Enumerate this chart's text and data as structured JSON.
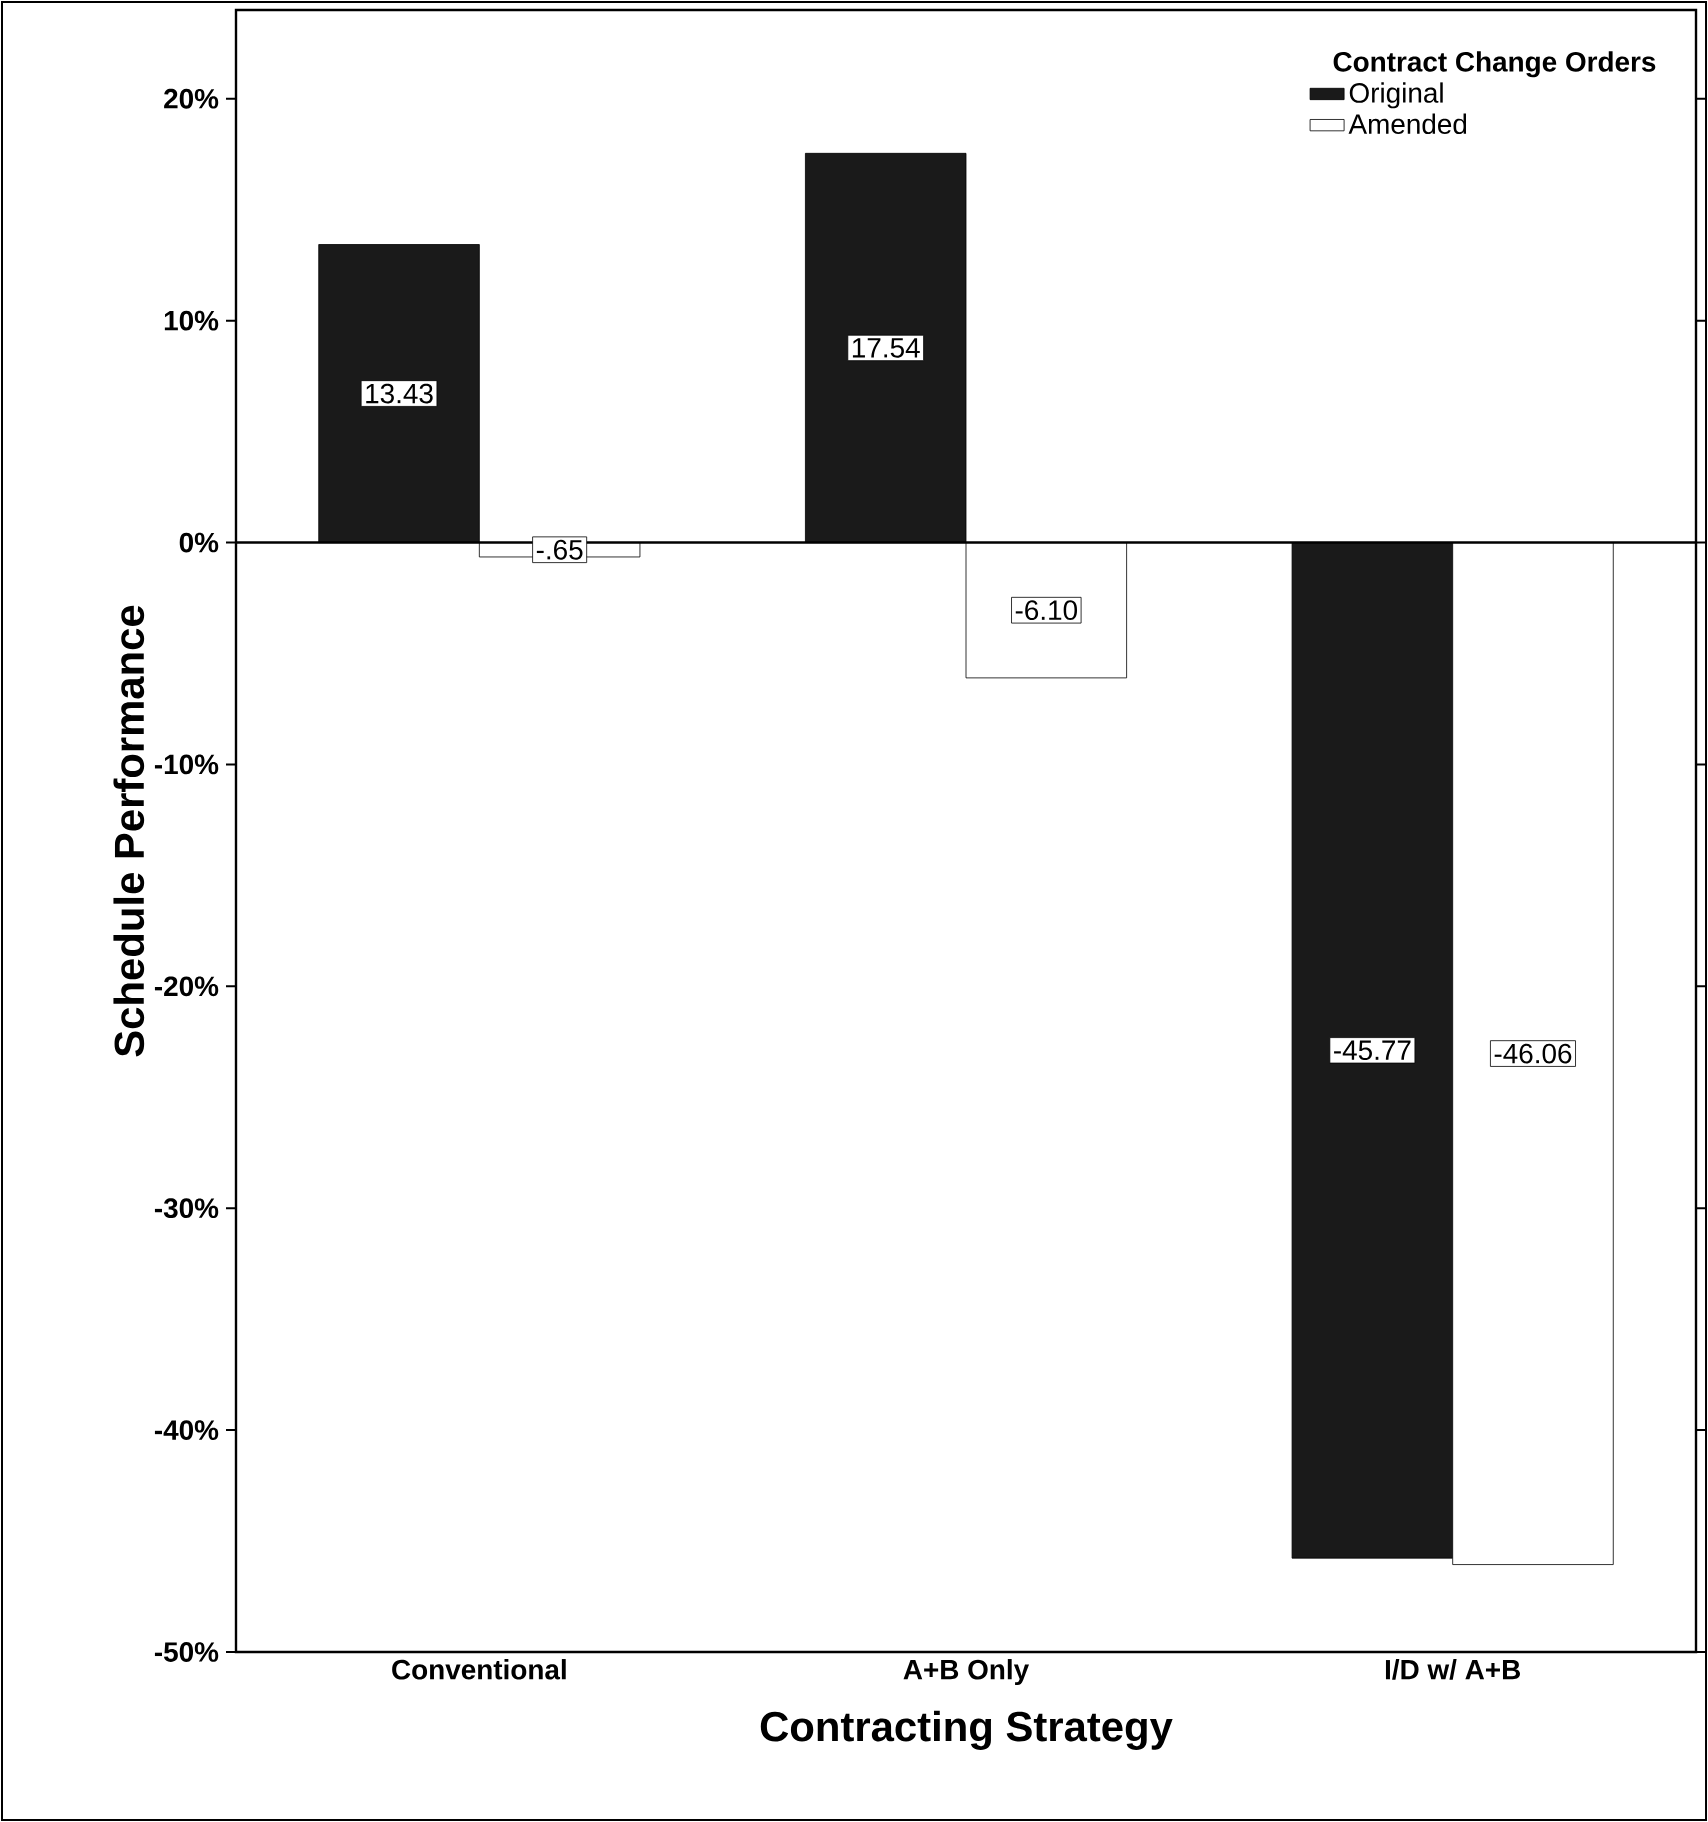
{
  "chart_data": {
    "type": "bar",
    "xlabel": "Contracting Strategy",
    "ylabel": "Schedule Performance",
    "legend_title": "Contract Change Orders",
    "categories": [
      "Conventional",
      "A+B Only",
      "I/D w/ A+B"
    ],
    "series": [
      {
        "name": "Original",
        "color": "#1a1a1a",
        "values": [
          13.43,
          17.54,
          -45.77
        ],
        "value_labels": [
          "13.43",
          "17.54",
          "-45.77"
        ]
      },
      {
        "name": "Amended",
        "color": "#ffffff",
        "values": [
          -0.65,
          -6.1,
          -46.06
        ],
        "value_labels": [
          "-.65",
          "-6.10",
          "-46.06"
        ]
      }
    ],
    "ylim": [
      -50,
      24
    ],
    "yticks": [
      {
        "value": -50,
        "label": "-50%"
      },
      {
        "value": -40,
        "label": "-40%"
      },
      {
        "value": -30,
        "label": "-30%"
      },
      {
        "value": -20,
        "label": "-20%"
      },
      {
        "value": -10,
        "label": "-10%"
      },
      {
        "value": 0,
        "label": "0%"
      },
      {
        "value": 10,
        "label": "10%"
      },
      {
        "value": 20,
        "label": "20%"
      }
    ],
    "ref_lines": [
      {
        "axis": "y",
        "value": 0
      }
    ],
    "grid": false,
    "legend": "top right"
  }
}
